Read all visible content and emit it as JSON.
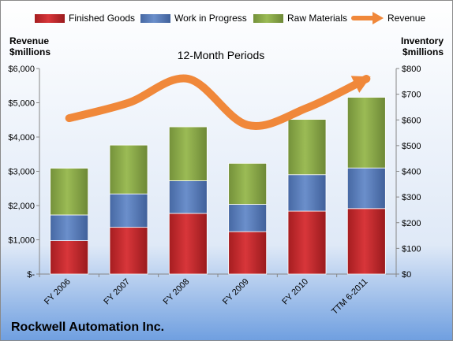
{
  "chart_data": {
    "type": "bar",
    "subtitle": "12-Month Periods",
    "company": "Rockwell Automation Inc.",
    "categories": [
      "FY 2006",
      "FY 2007",
      "FY 2008",
      "FY 2009",
      "FY 2010",
      "TTM 6-2011"
    ],
    "left_axis": {
      "label_lines": [
        "Revenue",
        "$millions"
      ],
      "ticks": [
        0,
        1000,
        2000,
        3000,
        4000,
        5000,
        6000
      ],
      "tick_labels": [
        "$-",
        "$1,000",
        "$2,000",
        "$3,000",
        "$4,000",
        "$5,000",
        "$6,000"
      ],
      "range": [
        0,
        6000
      ]
    },
    "right_axis": {
      "label_lines": [
        "Inventory",
        "$millions"
      ],
      "ticks": [
        0,
        100,
        200,
        300,
        400,
        500,
        600,
        700,
        800
      ],
      "tick_labels": [
        "$0",
        "$100",
        "$200",
        "$300",
        "$400",
        "$500",
        "$600",
        "$700",
        "$800"
      ],
      "range": [
        0,
        800
      ]
    },
    "stack_series": [
      {
        "name": "Finished Goods",
        "color": "#c0262a",
        "axis": "right",
        "values": [
          130,
          182,
          236,
          165,
          245,
          255
        ]
      },
      {
        "name": "Work in Progress",
        "color": "#5579b4",
        "axis": "right",
        "values": [
          100,
          130,
          127,
          106,
          142,
          158
        ]
      },
      {
        "name": "Raw Materials",
        "color": "#86a542",
        "axis": "right",
        "values": [
          182,
          190,
          210,
          160,
          215,
          275
        ]
      }
    ],
    "line_series": {
      "name": "Revenue",
      "color": "#f0883a",
      "axis": "left",
      "values": [
        4550,
        5000,
        5700,
        4350,
        4850,
        5700
      ]
    },
    "legend_position": "top",
    "grid": false
  }
}
